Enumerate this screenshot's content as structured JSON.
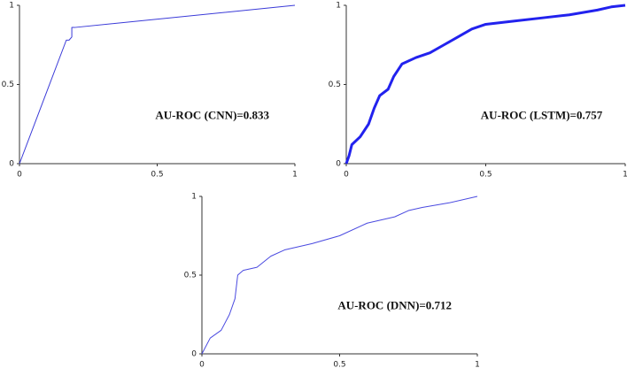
{
  "chart_data": [
    {
      "type": "line",
      "annotation": "AU-ROC (CNN)=0.833",
      "color": "#3a3ad8",
      "line_width": 1,
      "x": [
        0,
        0.17,
        0.18,
        0.19,
        0.19,
        0.2,
        1
      ],
      "values": [
        0,
        0.78,
        0.78,
        0.8,
        0.86,
        0.86,
        1
      ],
      "xlim": [
        0,
        1
      ],
      "ylim": [
        0,
        1
      ],
      "xticks": [
        0,
        0.5,
        1
      ],
      "yticks": [
        0,
        0.5,
        1
      ]
    },
    {
      "type": "line",
      "annotation": "AU-ROC (LSTM)=0.757",
      "color": "#2222ee",
      "line_width": 3,
      "x": [
        0,
        0.01,
        0.02,
        0.05,
        0.08,
        0.1,
        0.12,
        0.15,
        0.17,
        0.2,
        0.25,
        0.3,
        0.35,
        0.4,
        0.45,
        0.5,
        0.6,
        0.7,
        0.8,
        0.9,
        0.95,
        1
      ],
      "values": [
        0,
        0.05,
        0.12,
        0.17,
        0.25,
        0.35,
        0.43,
        0.47,
        0.55,
        0.63,
        0.67,
        0.7,
        0.75,
        0.8,
        0.85,
        0.88,
        0.9,
        0.92,
        0.94,
        0.97,
        0.99,
        1
      ],
      "xlim": [
        0,
        1
      ],
      "ylim": [
        0,
        1
      ],
      "xticks": [
        0,
        0.5,
        1
      ],
      "yticks": [
        0,
        0.5,
        1
      ]
    },
    {
      "type": "line",
      "annotation": "AU-ROC (DNN)=0.712",
      "color": "#4a4ae0",
      "line_width": 1,
      "x": [
        0,
        0.03,
        0.07,
        0.1,
        0.12,
        0.13,
        0.15,
        0.2,
        0.25,
        0.3,
        0.4,
        0.5,
        0.6,
        0.7,
        0.75,
        0.8,
        0.9,
        1
      ],
      "values": [
        0,
        0.1,
        0.15,
        0.25,
        0.35,
        0.5,
        0.53,
        0.55,
        0.62,
        0.66,
        0.7,
        0.75,
        0.83,
        0.87,
        0.91,
        0.93,
        0.96,
        1
      ],
      "xlim": [
        0,
        1
      ],
      "ylim": [
        0,
        1
      ],
      "xticks": [
        0,
        0.5,
        1
      ],
      "yticks": [
        0,
        0.5,
        1
      ]
    }
  ]
}
